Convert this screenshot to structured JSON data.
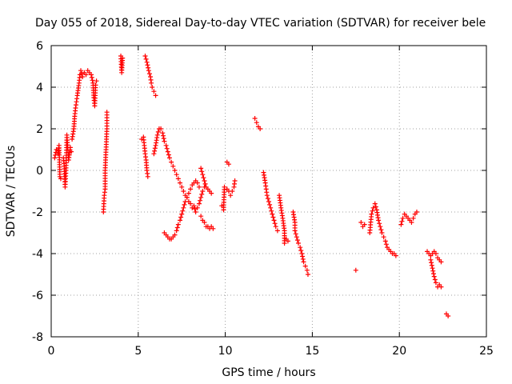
{
  "chart_data": {
    "type": "scatter",
    "title": "Day 055 of 2018, Sidereal Day-to-day VTEC variation (SDTVAR) for receiver bele",
    "xlabel": "GPS time / hours",
    "ylabel": "SDTVAR / TECUs",
    "xlim": [
      0,
      25
    ],
    "ylim": [
      -8,
      6
    ],
    "xticks": [
      0,
      5,
      10,
      15,
      20,
      25
    ],
    "yticks": [
      -8,
      -6,
      -4,
      -2,
      0,
      2,
      4,
      6
    ],
    "xtick_labels": [
      "0",
      "5",
      "10",
      "15",
      "20",
      "25"
    ],
    "ytick_labels": [
      "-8",
      "-6",
      "-4",
      "-2",
      "0",
      "2",
      "4",
      "6"
    ],
    "grid": true,
    "marker": "+",
    "color": "#ff0000",
    "series_segments": [
      [
        [
          0.2,
          0.6
        ],
        [
          0.3,
          1.0
        ],
        [
          0.4,
          0.8
        ],
        [
          0.45,
          1.2
        ],
        [
          0.5,
          -0.3
        ],
        [
          0.55,
          -0.4
        ]
      ],
      [
        [
          0.7,
          0.6
        ],
        [
          0.75,
          0.2
        ],
        [
          0.8,
          -0.8
        ],
        [
          0.85,
          0.0
        ],
        [
          0.9,
          1.7
        ],
        [
          1.0,
          0.5
        ],
        [
          1.1,
          1.1
        ],
        [
          1.15,
          0.9
        ]
      ],
      [
        [
          1.2,
          1.5
        ],
        [
          1.3,
          2.0
        ],
        [
          1.35,
          2.6
        ],
        [
          1.4,
          3.0
        ],
        [
          1.45,
          3.3
        ],
        [
          1.5,
          3.6
        ],
        [
          1.6,
          4.2
        ],
        [
          1.65,
          4.6
        ],
        [
          1.7,
          4.8
        ],
        [
          1.8,
          4.5
        ],
        [
          1.9,
          4.7
        ],
        [
          2.0,
          4.6
        ],
        [
          2.1,
          4.8
        ],
        [
          2.2,
          4.7
        ],
        [
          2.3,
          4.6
        ],
        [
          2.4,
          4.2
        ],
        [
          2.45,
          3.5
        ],
        [
          2.5,
          3.1
        ],
        [
          2.55,
          4.1
        ],
        [
          2.6,
          4.3
        ]
      ],
      [
        [
          3.0,
          -2.0
        ],
        [
          3.05,
          -1.2
        ],
        [
          3.1,
          -0.9
        ],
        [
          3.1,
          0.0
        ],
        [
          3.15,
          1.0
        ],
        [
          3.2,
          2.0
        ],
        [
          3.2,
          2.8
        ]
      ],
      [
        [
          4.0,
          5.5
        ],
        [
          4.05,
          4.7
        ],
        [
          4.1,
          5.4
        ]
      ],
      [
        [
          5.2,
          1.5
        ],
        [
          5.3,
          1.6
        ],
        [
          5.35,
          1.2
        ],
        [
          5.4,
          0.8
        ],
        [
          5.45,
          0.5
        ],
        [
          5.5,
          0.0
        ],
        [
          5.55,
          -0.3
        ]
      ],
      [
        [
          5.4,
          5.5
        ],
        [
          5.5,
          5.2
        ],
        [
          5.6,
          4.8
        ],
        [
          5.7,
          4.5
        ],
        [
          5.75,
          4.2
        ],
        [
          5.8,
          4.0
        ],
        [
          5.9,
          3.8
        ],
        [
          6.0,
          3.6
        ]
      ],
      [
        [
          5.9,
          0.8
        ],
        [
          6.0,
          1.2
        ],
        [
          6.1,
          1.7
        ],
        [
          6.2,
          2.0
        ],
        [
          6.3,
          2.0
        ],
        [
          6.4,
          1.8
        ],
        [
          6.5,
          1.4
        ],
        [
          6.6,
          1.2
        ],
        [
          6.7,
          0.9
        ],
        [
          6.8,
          0.6
        ],
        [
          6.9,
          0.4
        ],
        [
          7.0,
          0.2
        ],
        [
          7.1,
          0.0
        ],
        [
          7.2,
          -0.2
        ],
        [
          7.3,
          -0.4
        ],
        [
          7.4,
          -0.6
        ],
        [
          7.5,
          -0.8
        ],
        [
          7.6,
          -1.0
        ],
        [
          7.7,
          -1.2
        ],
        [
          7.8,
          -1.3
        ],
        [
          7.9,
          -1.5
        ],
        [
          8.0,
          -1.6
        ],
        [
          8.1,
          -1.8
        ],
        [
          8.2,
          -1.7
        ],
        [
          8.3,
          -2.0
        ],
        [
          8.4,
          -1.8
        ],
        [
          8.5,
          -1.6
        ],
        [
          8.6,
          -1.3
        ],
        [
          8.7,
          -1.0
        ],
        [
          8.8,
          -0.8
        ]
      ],
      [
        [
          6.5,
          -3.0
        ],
        [
          6.6,
          -3.1
        ],
        [
          6.7,
          -3.2
        ],
        [
          6.8,
          -3.3
        ],
        [
          6.9,
          -3.3
        ],
        [
          7.0,
          -3.2
        ],
        [
          7.1,
          -3.1
        ],
        [
          7.2,
          -2.9
        ],
        [
          7.3,
          -2.6
        ],
        [
          7.4,
          -2.4
        ],
        [
          7.5,
          -2.1
        ],
        [
          7.6,
          -1.8
        ],
        [
          7.7,
          -1.5
        ],
        [
          7.8,
          -1.3
        ],
        [
          7.9,
          -1.1
        ],
        [
          8.0,
          -0.9
        ],
        [
          8.1,
          -0.7
        ],
        [
          8.2,
          -0.6
        ],
        [
          8.3,
          -0.5
        ],
        [
          8.4,
          -0.6
        ],
        [
          8.5,
          -0.8
        ]
      ],
      [
        [
          8.6,
          0.1
        ],
        [
          8.7,
          -0.2
        ],
        [
          8.8,
          -0.5
        ],
        [
          8.9,
          -0.8
        ],
        [
          9.0,
          -0.9
        ],
        [
          9.1,
          -1.0
        ],
        [
          9.2,
          -1.1
        ]
      ],
      [
        [
          8.6,
          -2.2
        ],
        [
          8.7,
          -2.4
        ],
        [
          8.8,
          -2.5
        ],
        [
          8.9,
          -2.7
        ],
        [
          9.0,
          -2.7
        ],
        [
          9.1,
          -2.8
        ],
        [
          9.2,
          -2.7
        ],
        [
          9.3,
          -2.8
        ]
      ],
      [
        [
          9.8,
          -1.7
        ],
        [
          9.9,
          -1.9
        ],
        [
          9.95,
          -0.8
        ],
        [
          10.1,
          -0.9
        ],
        [
          10.2,
          -1.0
        ],
        [
          10.3,
          -1.2
        ],
        [
          10.4,
          -1.0
        ],
        [
          10.5,
          -0.8
        ],
        [
          10.55,
          -0.5
        ]
      ],
      [
        [
          10.1,
          0.4
        ],
        [
          10.2,
          0.3
        ]
      ],
      [
        [
          11.7,
          2.5
        ],
        [
          11.8,
          2.3
        ],
        [
          11.9,
          2.1
        ],
        [
          12.0,
          2.0
        ]
      ],
      [
        [
          12.2,
          -0.1
        ],
        [
          12.3,
          -0.6
        ],
        [
          12.35,
          -0.9
        ],
        [
          12.4,
          -1.2
        ],
        [
          12.5,
          -1.5
        ],
        [
          12.6,
          -1.8
        ],
        [
          12.7,
          -2.1
        ],
        [
          12.8,
          -2.4
        ],
        [
          12.9,
          -2.7
        ],
        [
          13.0,
          -2.9
        ]
      ],
      [
        [
          13.1,
          -1.2
        ],
        [
          13.2,
          -1.8
        ],
        [
          13.3,
          -2.3
        ],
        [
          13.4,
          -2.9
        ],
        [
          13.4,
          -3.5
        ],
        [
          13.5,
          -3.3
        ],
        [
          13.6,
          -3.4
        ]
      ],
      [
        [
          13.9,
          -2.0
        ],
        [
          14.0,
          -2.5
        ],
        [
          14.0,
          -2.9
        ],
        [
          14.1,
          -3.2
        ],
        [
          14.2,
          -3.5
        ],
        [
          14.3,
          -3.7
        ],
        [
          14.4,
          -4.0
        ],
        [
          14.5,
          -4.4
        ],
        [
          14.6,
          -4.6
        ],
        [
          14.7,
          -4.8
        ],
        [
          14.75,
          -5.0
        ]
      ],
      [
        [
          17.5,
          -4.8
        ]
      ],
      [
        [
          17.8,
          -2.5
        ],
        [
          17.9,
          -2.7
        ],
        [
          18.0,
          -2.6
        ]
      ],
      [
        [
          18.3,
          -3.0
        ],
        [
          18.4,
          -2.1
        ],
        [
          18.5,
          -1.8
        ],
        [
          18.6,
          -1.6
        ],
        [
          18.7,
          -1.9
        ],
        [
          18.8,
          -2.4
        ],
        [
          18.9,
          -2.7
        ],
        [
          19.0,
          -3.0
        ],
        [
          19.1,
          -3.2
        ],
        [
          19.2,
          -3.4
        ],
        [
          19.3,
          -3.7
        ],
        [
          19.4,
          -3.8
        ],
        [
          19.5,
          -3.9
        ],
        [
          19.6,
          -4.0
        ],
        [
          19.7,
          -4.0
        ],
        [
          19.8,
          -4.1
        ]
      ],
      [
        [
          20.1,
          -2.6
        ],
        [
          20.2,
          -2.3
        ],
        [
          20.3,
          -2.1
        ],
        [
          20.4,
          -2.2
        ],
        [
          20.5,
          -2.3
        ],
        [
          20.6,
          -2.4
        ],
        [
          20.7,
          -2.5
        ],
        [
          20.8,
          -2.3
        ],
        [
          20.9,
          -2.1
        ],
        [
          21.0,
          -2.0
        ]
      ],
      [
        [
          21.6,
          -3.9
        ],
        [
          21.7,
          -4.0
        ],
        [
          21.8,
          -4.1
        ],
        [
          21.9,
          -4.0
        ],
        [
          22.0,
          -3.9
        ],
        [
          22.1,
          -4.0
        ],
        [
          22.2,
          -4.2
        ],
        [
          22.3,
          -4.3
        ],
        [
          22.4,
          -4.4
        ]
      ],
      [
        [
          21.8,
          -4.3
        ],
        [
          21.9,
          -4.7
        ],
        [
          22.0,
          -5.1
        ],
        [
          22.1,
          -5.4
        ],
        [
          22.2,
          -5.6
        ],
        [
          22.3,
          -5.5
        ],
        [
          22.4,
          -5.6
        ]
      ],
      [
        [
          22.7,
          -6.9
        ],
        [
          22.8,
          -7.0
        ]
      ]
    ]
  }
}
